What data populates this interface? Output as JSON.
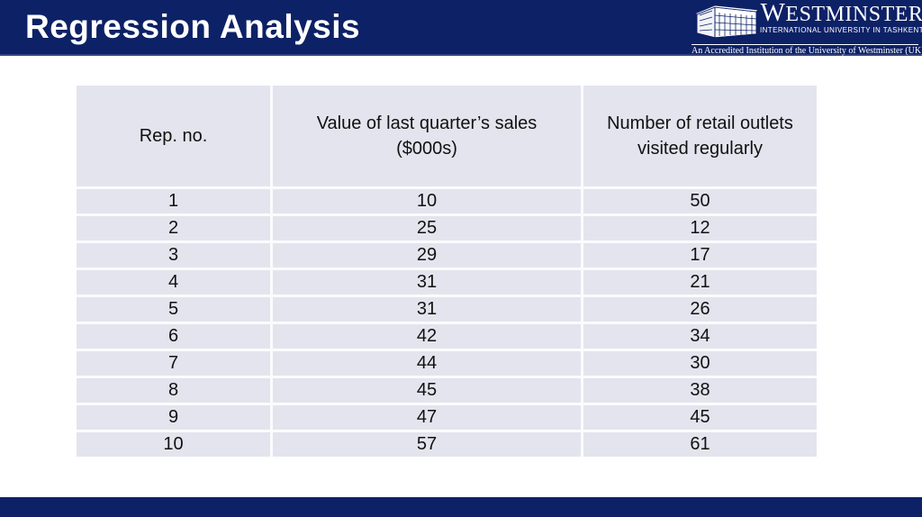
{
  "slide": {
    "title": "Regression Analysis"
  },
  "logo": {
    "name": "WESTMINSTER",
    "subtitle": "INTERNATIONAL UNIVERSITY IN TASHKENT",
    "accreditation": "An Accredited Institution of the University of Westminster (UK)",
    "icon": "building-icon"
  },
  "table": {
    "columns": [
      "Rep. no.",
      "Value of last quarter’s sales ($000s)",
      "Number of retail outlets visited regularly"
    ],
    "rows": [
      [
        "1",
        "10",
        "50"
      ],
      [
        "2",
        "25",
        "12"
      ],
      [
        "3",
        "29",
        "17"
      ],
      [
        "4",
        "31",
        "21"
      ],
      [
        "5",
        "31",
        "26"
      ],
      [
        "6",
        "42",
        "34"
      ],
      [
        "7",
        "44",
        "30"
      ],
      [
        "8",
        "45",
        "38"
      ],
      [
        "9",
        "47",
        "45"
      ],
      [
        "10",
        "57",
        "61"
      ]
    ]
  },
  "chart_data": {
    "type": "table",
    "title": "Regression Analysis",
    "columns": [
      "Rep. no.",
      "Value of last quarter’s sales ($000s)",
      "Number of retail outlets visited regularly"
    ],
    "rows": [
      [
        1,
        10,
        50
      ],
      [
        2,
        25,
        12
      ],
      [
        3,
        29,
        17
      ],
      [
        4,
        31,
        21
      ],
      [
        5,
        31,
        26
      ],
      [
        6,
        42,
        34
      ],
      [
        7,
        44,
        30
      ],
      [
        8,
        45,
        38
      ],
      [
        9,
        47,
        45
      ],
      [
        10,
        57,
        61
      ]
    ]
  },
  "colors": {
    "navy": "#0d2166",
    "navy-edge": "#35447e",
    "cell-bg": "#e4e4ee",
    "sep": "#fbfbfd"
  }
}
